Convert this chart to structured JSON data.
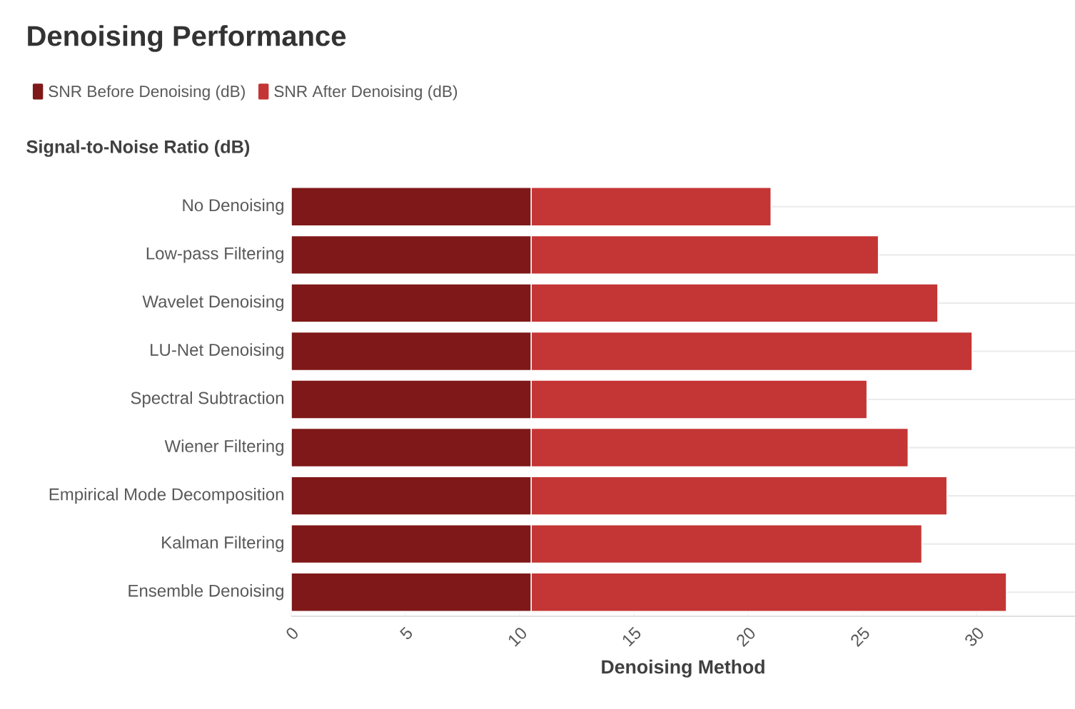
{
  "chart_data": {
    "type": "bar",
    "orientation": "horizontal",
    "stacked": true,
    "title": "Denoising Performance",
    "ylabel": "Signal-to-Noise Ratio (dB)",
    "xlabel": "Denoising Method",
    "categories": [
      "No Denoising",
      "Low-pass Filtering",
      "Wavelet Denoising",
      "LU-Net Denoising",
      "Spectral Subtraction",
      "Wiener Filtering",
      "Empirical Mode Decomposition",
      "Kalman Filtering",
      "Ensemble Denoising"
    ],
    "series": [
      {
        "name": "SNR Before Denoising (dB)",
        "color": "#7f1818",
        "values": [
          10.5,
          10.5,
          10.5,
          10.5,
          10.5,
          10.5,
          10.5,
          10.5,
          10.5
        ]
      },
      {
        "name": "SNR After Denoising (dB)",
        "color": "#c43535",
        "values": [
          10.5,
          15.2,
          17.8,
          19.3,
          14.7,
          16.5,
          18.2,
          17.1,
          20.8
        ]
      }
    ],
    "xlim": [
      0,
      34.3
    ],
    "xticks": [
      0,
      5,
      10,
      15,
      20,
      25,
      30
    ],
    "grid": "y",
    "legend": "top left"
  }
}
